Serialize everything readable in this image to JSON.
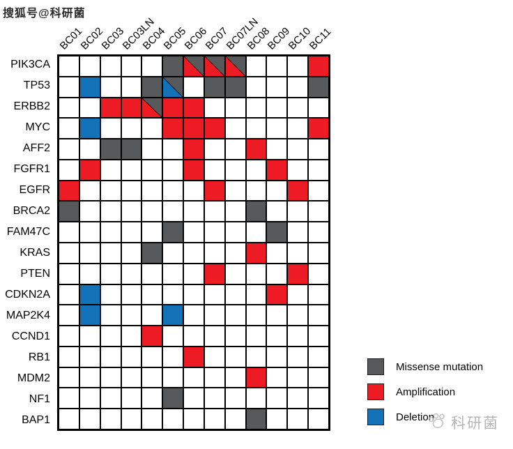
{
  "watermarks": {
    "top_left": "搜狐号@科研菌",
    "bottom_right": "科研菌"
  },
  "legend": {
    "items": [
      {
        "key": "M",
        "label": "Missense mutation",
        "color": "#58595B"
      },
      {
        "key": "A",
        "label": "Amplification",
        "color": "#ED1C24"
      },
      {
        "key": "D",
        "label": "Deletion",
        "color": "#1472B9"
      }
    ]
  },
  "chart_data": {
    "type": "heatmap",
    "subtype": "oncoprint-mutation-grid",
    "columns": [
      "BC01",
      "BC02",
      "BC03",
      "BC03LN",
      "BC04",
      "BC05",
      "BC06",
      "BC07",
      "BC07LN",
      "BC08",
      "BC09",
      "BC10",
      "BC11"
    ],
    "rows": [
      "PIK3CA",
      "TP53",
      "ERBB2",
      "MYC",
      "AFF2",
      "FGFR1",
      "EGFR",
      "BRCA2",
      "FAM47C",
      "KRAS",
      "PTEN",
      "CDKN2A",
      "MAP2K4",
      "CCND1",
      "RB1",
      "MDM2",
      "NF1",
      "BAP1"
    ],
    "cell_codes": {
      "": "none",
      "M": "Missense mutation",
      "A": "Amplification",
      "D": "Deletion",
      "MA": "Missense mutation + Amplification (diagonal split, amplification lower-left)",
      "MD": "Missense mutation + Deletion (diagonal split, deletion lower-left)"
    },
    "matrix": [
      [
        "",
        "",
        "",
        "",
        "",
        "M",
        "MA",
        "MA",
        "MA",
        "",
        "",
        "",
        "A"
      ],
      [
        "",
        "D",
        "",
        "",
        "M",
        "MD",
        "",
        "M",
        "M",
        "",
        "",
        "",
        "M"
      ],
      [
        "",
        "",
        "A",
        "A",
        "MA",
        "A",
        "A",
        "",
        "",
        "",
        "",
        "",
        ""
      ],
      [
        "",
        "D",
        "",
        "",
        "",
        "A",
        "A",
        "A",
        "",
        "",
        "",
        "",
        "A"
      ],
      [
        "",
        "",
        "M",
        "M",
        "",
        "",
        "A",
        "",
        "",
        "A",
        "",
        "",
        ""
      ],
      [
        "",
        "A",
        "",
        "",
        "",
        "",
        "A",
        "",
        "",
        "",
        "A",
        "",
        ""
      ],
      [
        "A",
        "",
        "",
        "",
        "",
        "",
        "",
        "A",
        "",
        "",
        "",
        "A",
        ""
      ],
      [
        "M",
        "",
        "",
        "",
        "",
        "",
        "",
        "",
        "",
        "M",
        "",
        "",
        ""
      ],
      [
        "",
        "",
        "",
        "",
        "",
        "M",
        "",
        "",
        "",
        "",
        "M",
        "",
        ""
      ],
      [
        "",
        "",
        "",
        "",
        "M",
        "",
        "",
        "",
        "",
        "A",
        "",
        "",
        ""
      ],
      [
        "",
        "",
        "",
        "",
        "",
        "",
        "",
        "A",
        "",
        "",
        "",
        "A",
        ""
      ],
      [
        "",
        "D",
        "",
        "",
        "",
        "",
        "",
        "",
        "",
        "",
        "A",
        "",
        ""
      ],
      [
        "",
        "D",
        "",
        "",
        "",
        "D",
        "",
        "",
        "",
        "",
        "",
        "",
        ""
      ],
      [
        "",
        "",
        "",
        "",
        "A",
        "",
        "",
        "",
        "",
        "",
        "",
        "",
        ""
      ],
      [
        "",
        "",
        "",
        "",
        "",
        "",
        "A",
        "",
        "",
        "",
        "",
        "",
        ""
      ],
      [
        "",
        "",
        "",
        "",
        "",
        "",
        "",
        "",
        "",
        "A",
        "",
        "",
        ""
      ],
      [
        "",
        "",
        "",
        "",
        "",
        "M",
        "",
        "",
        "",
        "",
        "",
        "",
        ""
      ],
      [
        "",
        "",
        "",
        "",
        "",
        "",
        "",
        "",
        "",
        "M",
        "",
        "",
        ""
      ]
    ],
    "colors": {
      "M": "#58595B",
      "A": "#ED1C24",
      "D": "#1472B9",
      "empty": "#FFFFFF",
      "gridline": "#000000"
    },
    "grid_on": true,
    "legend_position": "bottom-right",
    "x_tick_rotation_deg": 45
  }
}
